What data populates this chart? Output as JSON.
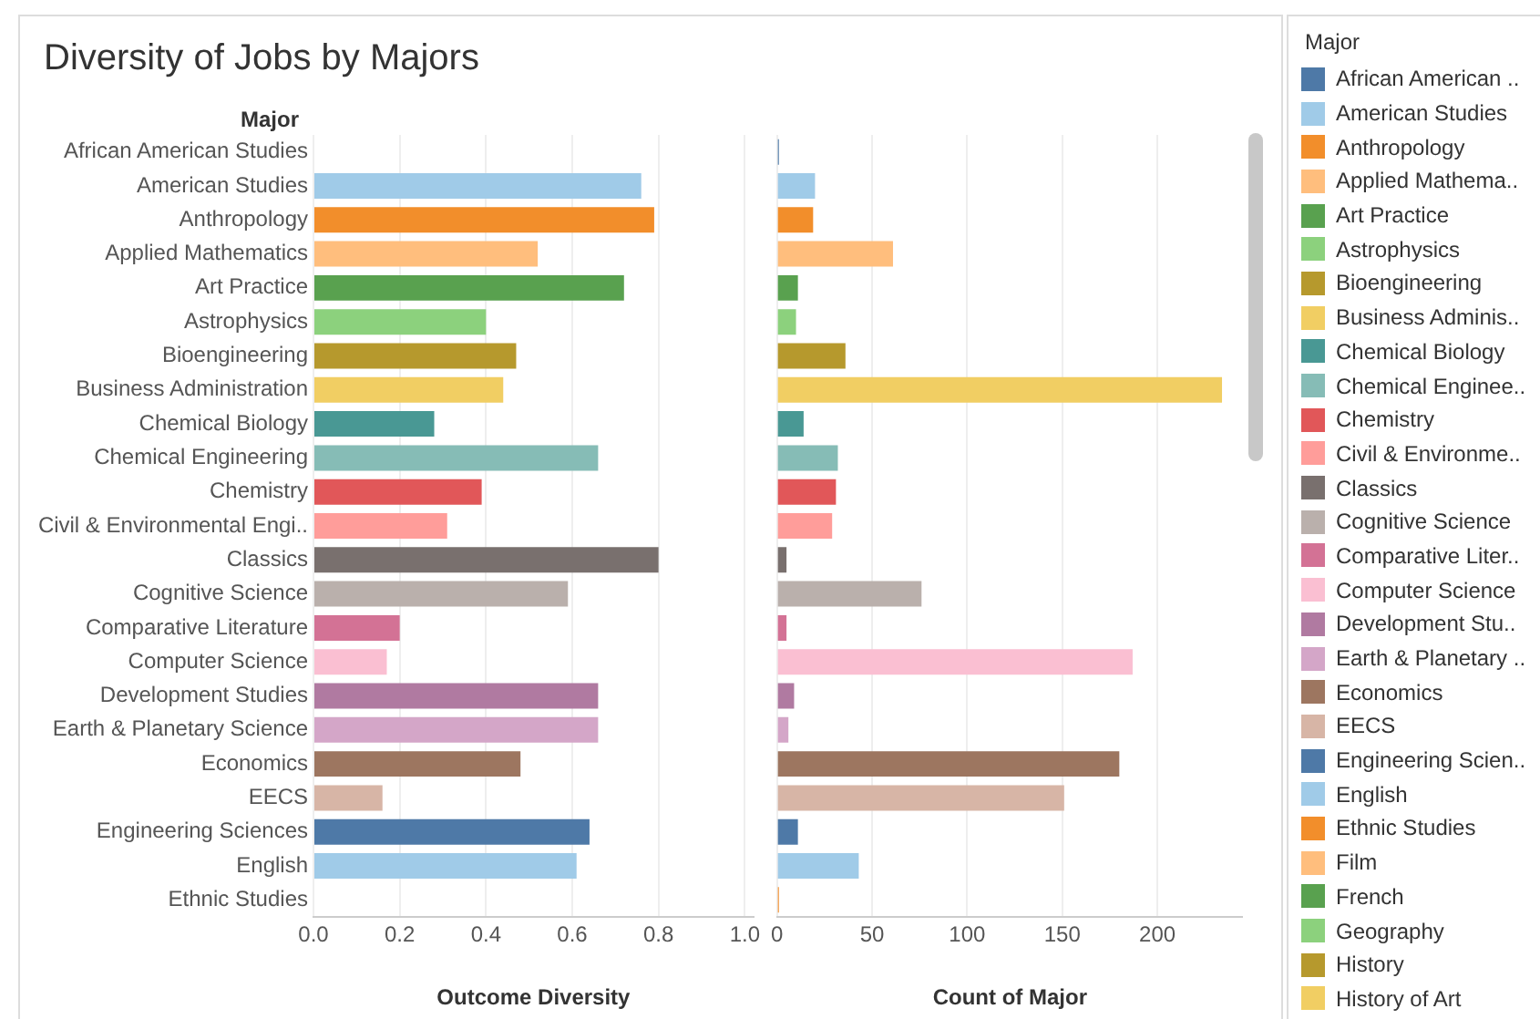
{
  "chart_data": [
    {
      "type": "bar",
      "orientation": "horizontal",
      "title": "Diversity of Jobs by Majors",
      "ylabel": "Major",
      "xlabel": "Outcome Diversity",
      "categories": [
        "African American Studies",
        "American Studies",
        "Anthropology",
        "Applied Mathematics",
        "Art Practice",
        "Astrophysics",
        "Bioengineering",
        "Business Administration",
        "Chemical Biology",
        "Chemical Engineering",
        "Chemistry",
        "Civil & Environmental Engi..",
        "Classics",
        "Cognitive Science",
        "Comparative Literature",
        "Computer Science",
        "Development Studies",
        "Earth & Planetary Science",
        "Economics",
        "EECS",
        "Engineering Sciences",
        "English",
        "Ethnic Studies"
      ],
      "values": [
        0.0,
        0.76,
        0.79,
        0.52,
        0.72,
        0.4,
        0.47,
        0.44,
        0.28,
        0.66,
        0.39,
        0.31,
        0.8,
        0.59,
        0.2,
        0.17,
        0.66,
        0.66,
        0.48,
        0.16,
        0.64,
        0.61,
        0.0
      ],
      "colors": [
        "#4e79a7",
        "#a0cbe8",
        "#f28e2b",
        "#ffbe7d",
        "#59a14f",
        "#8cd17d",
        "#b6992d",
        "#f1ce63",
        "#499894",
        "#86bcb6",
        "#e15759",
        "#ff9d9a",
        "#79706e",
        "#bab0ac",
        "#d37295",
        "#fabfd2",
        "#b07aa1",
        "#d4a6c8",
        "#9d7660",
        "#d7b5a6",
        "#4e79a7",
        "#a0cbe8",
        "#f28e2b"
      ],
      "xlim": [
        0,
        1.02
      ],
      "xticks": [
        {
          "value": 0,
          "label": "0.0"
        },
        {
          "value": 0.2,
          "label": "0.2"
        },
        {
          "value": 0.4,
          "label": "0.4"
        },
        {
          "value": 0.6,
          "label": "0.6"
        },
        {
          "value": 0.8,
          "label": "0.8"
        },
        {
          "value": 1,
          "label": "1.0"
        }
      ],
      "grid": "x"
    },
    {
      "type": "bar",
      "orientation": "horizontal",
      "xlabel": "Count of Major",
      "categories": [
        null,
        null,
        null,
        null,
        null,
        null,
        null,
        null,
        null,
        null,
        null,
        null,
        null,
        null,
        null,
        null,
        null,
        null,
        null,
        null,
        null,
        null,
        null
      ],
      "values": [
        1,
        20,
        19,
        61,
        11,
        10,
        36,
        234,
        14,
        32,
        31,
        29,
        5,
        76,
        5,
        187,
        9,
        6,
        180,
        151,
        11,
        43,
        1
      ],
      "colors": [
        "#4e79a7",
        "#a0cbe8",
        "#f28e2b",
        "#ffbe7d",
        "#59a14f",
        "#8cd17d",
        "#b6992d",
        "#f1ce63",
        "#499894",
        "#86bcb6",
        "#e15759",
        "#ff9d9a",
        "#79706e",
        "#bab0ac",
        "#d37295",
        "#fabfd2",
        "#b07aa1",
        "#d4a6c8",
        "#9d7660",
        "#d7b5a6",
        "#4e79a7",
        "#a0cbe8",
        "#f28e2b"
      ],
      "xlim": [
        0,
        245
      ],
      "xticks": [
        0,
        50,
        100,
        150,
        200
      ],
      "grid": "x",
      "tick_labels": "x"
    },
    {
      "type": "other",
      "legend_title": "Major",
      "categories": [
        "African American ..",
        "American Studies",
        "Anthropology",
        "Applied Mathema..",
        "Art Practice",
        "Astrophysics",
        "Bioengineering",
        "Business Adminis..",
        "Chemical Biology",
        "Chemical Enginee..",
        "Chemistry",
        "Civil & Environme..",
        "Classics",
        "Cognitive Science",
        "Comparative Liter..",
        "Computer Science",
        "Development Stu..",
        "Earth & Planetary ..",
        "Economics",
        "EECS",
        "Engineering Scien..",
        "English",
        "Ethnic Studies",
        "Film",
        "French",
        "Geography",
        "History",
        "History of Art"
      ],
      "colors": [
        "#4e79a7",
        "#a0cbe8",
        "#f28e2b",
        "#ffbe7d",
        "#59a14f",
        "#8cd17d",
        "#b6992d",
        "#f1ce63",
        "#499894",
        "#86bcb6",
        "#e15759",
        "#ff9d9a",
        "#79706e",
        "#bab0ac",
        "#d37295",
        "#fabfd2",
        "#b07aa1",
        "#d4a6c8",
        "#9d7660",
        "#d7b5a6",
        "#4e79a7",
        "#a0cbe8",
        "#f28e2b",
        "#ffbe7d",
        "#59a14f",
        "#8cd17d",
        "#b6992d",
        "#f1ce63"
      ]
    }
  ]
}
